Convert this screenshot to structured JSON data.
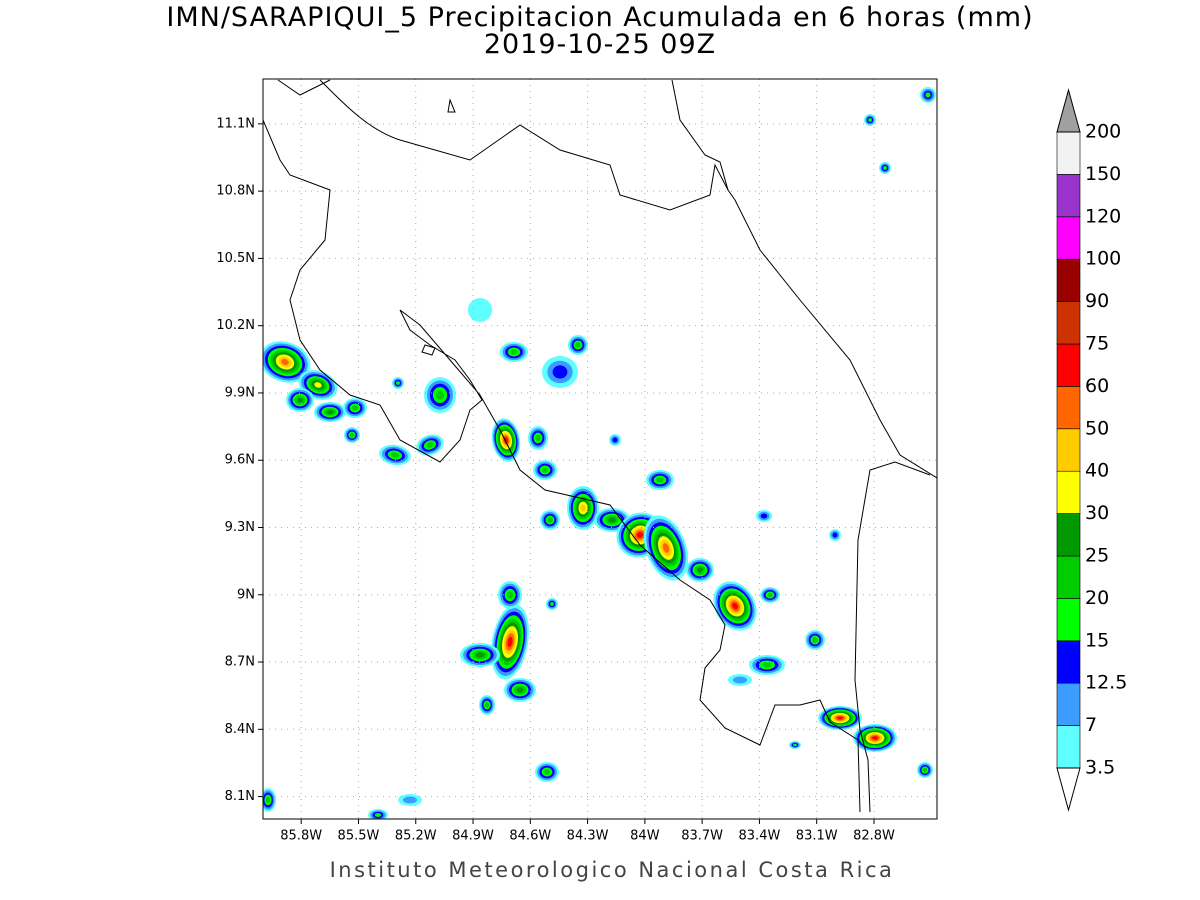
{
  "title": "IMN/SARAPIQUI_5 Precipitacion Acumulada en 6 horas (mm)",
  "subtitle": "2019-10-25 09Z",
  "map": {
    "xlim": [
      -86.0,
      -82.47
    ],
    "ylim": [
      8.0,
      11.3
    ],
    "xticks": [
      {
        "value": -85.8,
        "label": "85.8W"
      },
      {
        "value": -85.5,
        "label": "85.5W"
      },
      {
        "value": -85.2,
        "label": "85.2W"
      },
      {
        "value": -84.9,
        "label": "84.9W"
      },
      {
        "value": -84.6,
        "label": "84.6W"
      },
      {
        "value": -84.3,
        "label": "84.3W"
      },
      {
        "value": -84.0,
        "label": "84W"
      },
      {
        "value": -83.7,
        "label": "83.7W"
      },
      {
        "value": -83.4,
        "label": "83.4W"
      },
      {
        "value": -83.1,
        "label": "83.1W"
      },
      {
        "value": -82.8,
        "label": "82.8W"
      }
    ],
    "yticks": [
      {
        "value": 8.1,
        "label": "8.1N"
      },
      {
        "value": 8.4,
        "label": "8.4N"
      },
      {
        "value": 8.7,
        "label": "8.7N"
      },
      {
        "value": 9.0,
        "label": "9N"
      },
      {
        "value": 9.3,
        "label": "9.3N"
      },
      {
        "value": 9.6,
        "label": "9.6N"
      },
      {
        "value": 9.9,
        "label": "9.9N"
      },
      {
        "value": 10.2,
        "label": "10.2N"
      },
      {
        "value": 10.5,
        "label": "10.5N"
      },
      {
        "value": 10.8,
        "label": "10.8N"
      },
      {
        "value": 11.1,
        "label": "11.1N"
      }
    ],
    "grid": true
  },
  "colorbar": {
    "levels": [
      3.5,
      7,
      12.5,
      15,
      20,
      25,
      30,
      40,
      50,
      60,
      75,
      90,
      100,
      120,
      150,
      200
    ],
    "colors": [
      "#5fffff",
      "#3c9cff",
      "#0000ff",
      "#00ff00",
      "#00cc00",
      "#009900",
      "#ffff00",
      "#ffcc00",
      "#ff6600",
      "#ff0000",
      "#cc3300",
      "#990000",
      "#ff00ff",
      "#9933cc",
      "#f2f2f2"
    ],
    "under_color": "#ffffff",
    "over_color": "#a0a0a0"
  },
  "footer": "Instituto Meteorologico Nacional Costa Rica"
}
